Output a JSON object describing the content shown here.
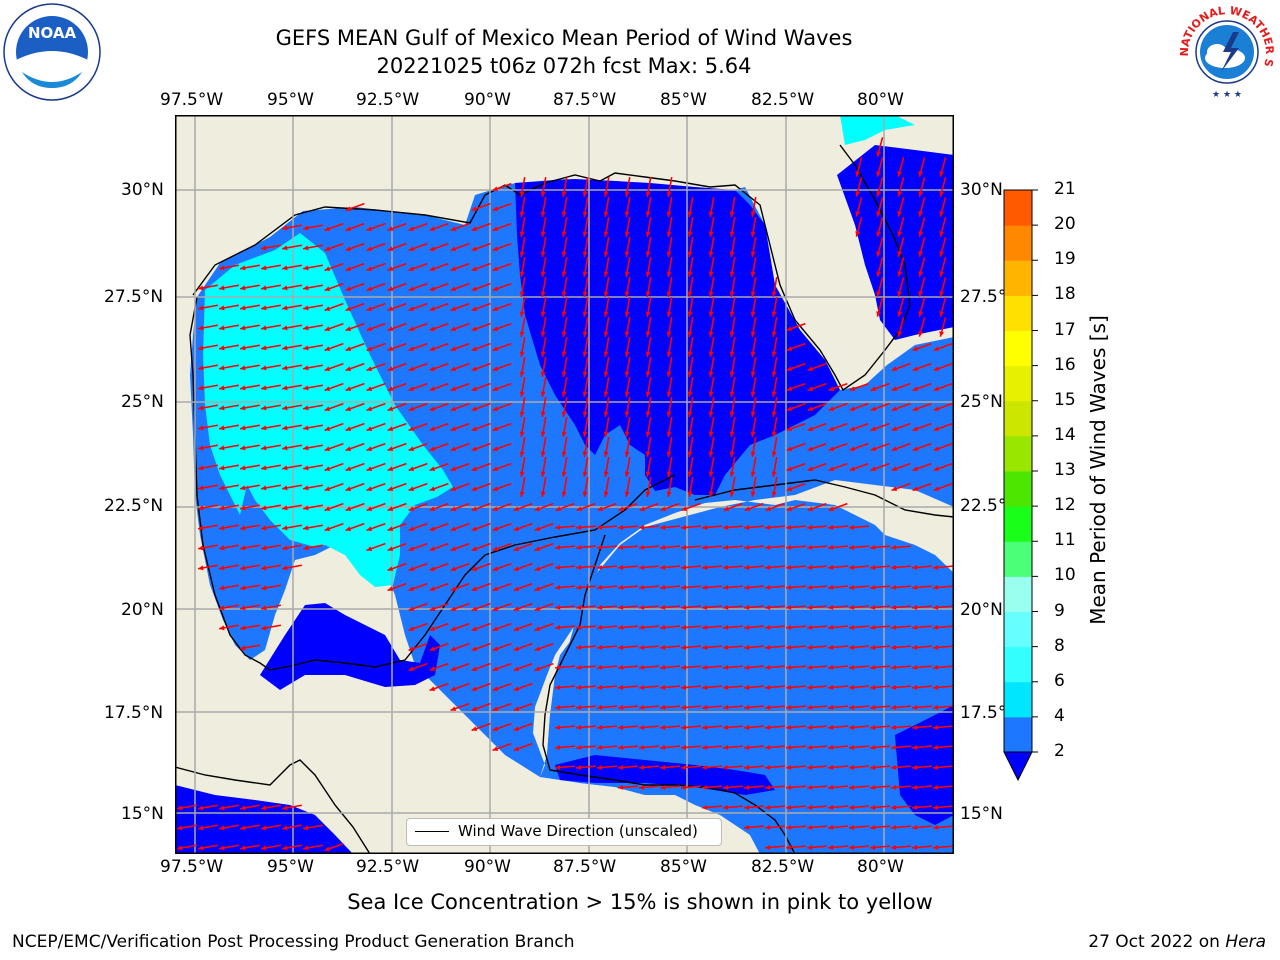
{
  "title": {
    "line1": "GEFS MEAN Gulf of Mexico Mean Period of Wind Waves",
    "line2": "20221025 t06z 072h fcst   Max: 5.64"
  },
  "map": {
    "lon_labels": [
      "97.5°W",
      "95°W",
      "92.5°W",
      "90°W",
      "87.5°W",
      "85°W",
      "82.5°W",
      "80°W"
    ],
    "lat_labels": [
      "30°N",
      "27.5°N",
      "25°N",
      "22.5°N",
      "20°N",
      "17.5°N",
      "15°N"
    ],
    "lat_labels_right": [
      "30°N",
      "27.5°N",
      "25°N",
      "22.5°N",
      "20°N",
      "17.5°N",
      "15°N"
    ],
    "colors": {
      "land": "#efedde",
      "water_dark": "#0000ff",
      "water_mid": "#1e78ff",
      "water_light": "#00ffff",
      "arrow": "#ff0000",
      "coast": "#000000",
      "grid": "#aaaaaa"
    }
  },
  "legend": {
    "label": "Wind Wave Direction (unscaled)"
  },
  "colorbar": {
    "label": "Mean Period of Wind Waves [s]",
    "ticks": [
      "2",
      "4",
      "6",
      "8",
      "9",
      "10",
      "11",
      "12",
      "13",
      "14",
      "15",
      "16",
      "17",
      "18",
      "19",
      "20",
      "21"
    ],
    "colors": [
      "#1e78ff",
      "#00e6ff",
      "#33ffff",
      "#66ffff",
      "#99ffee",
      "#4cff78",
      "#19ff19",
      "#4ce600",
      "#99e600",
      "#cce600",
      "#e6f000",
      "#ffff00",
      "#ffe000",
      "#ffb400",
      "#ff8800",
      "#ff5a00",
      "#ff2a00",
      "#ff0000"
    ],
    "under_color": "#0000ff"
  },
  "subtitle": "Sea Ice Concentration > 15% is shown in pink to yellow",
  "footer": {
    "left": "NCEP/EMC/Verification Post Processing Product Generation Branch",
    "right_prefix": "27 Oct 2022 on ",
    "right_host": "Hera"
  },
  "logos": {
    "left": "noaa-logo",
    "right": "nws-logo",
    "left_text": "NOAA",
    "nws_text": "NATIONAL WEATHER SERVICE"
  }
}
